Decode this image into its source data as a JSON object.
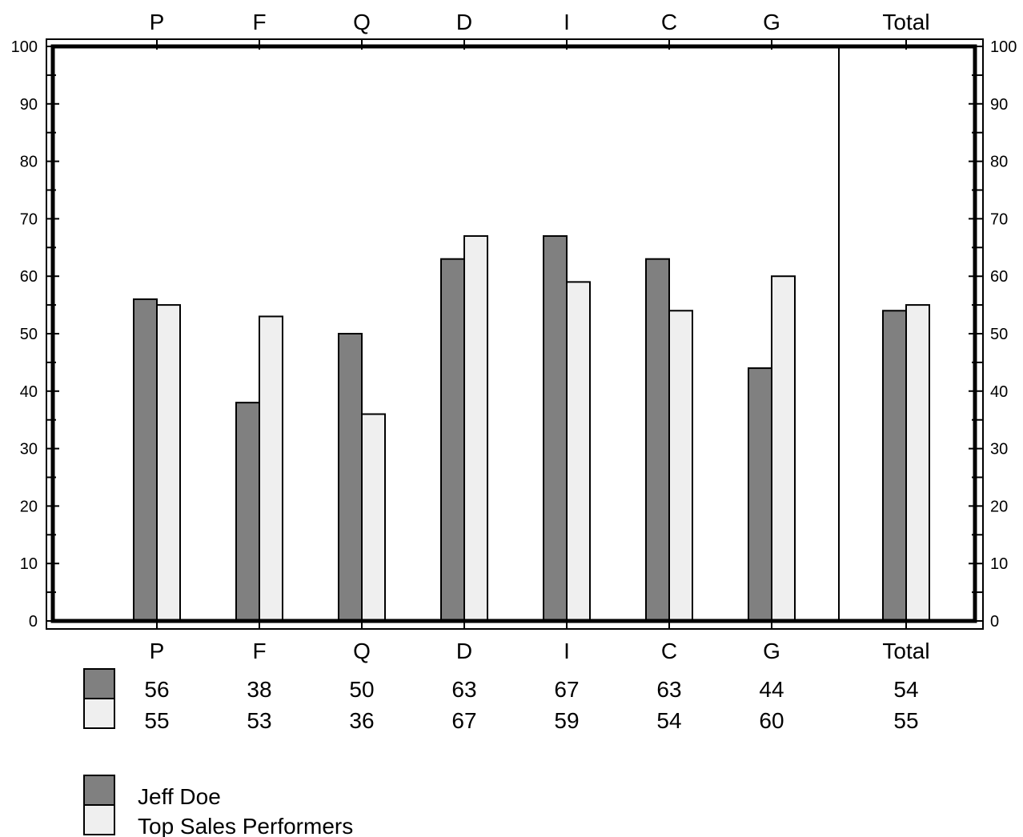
{
  "chart_data": {
    "type": "bar",
    "categories": [
      "P",
      "F",
      "Q",
      "D",
      "I",
      "C",
      "G",
      "Total"
    ],
    "series": [
      {
        "name": "Jeff Doe",
        "values": [
          56,
          38,
          50,
          63,
          67,
          63,
          44,
          54
        ],
        "color": "#808080"
      },
      {
        "name": "Top Sales Performers",
        "values": [
          55,
          53,
          36,
          67,
          59,
          54,
          60,
          55
        ],
        "color": "#efefef"
      }
    ],
    "ylim": [
      0,
      100
    ],
    "yticks": [
      0,
      10,
      20,
      30,
      40,
      50,
      60,
      70,
      80,
      90,
      100
    ],
    "ytick_labels": [
      "0",
      "10",
      "20",
      "30",
      "40",
      "50",
      "60",
      "70",
      "80",
      "90",
      "100"
    ],
    "grid": false,
    "legend_position": "bottom-left",
    "value_table": true
  }
}
